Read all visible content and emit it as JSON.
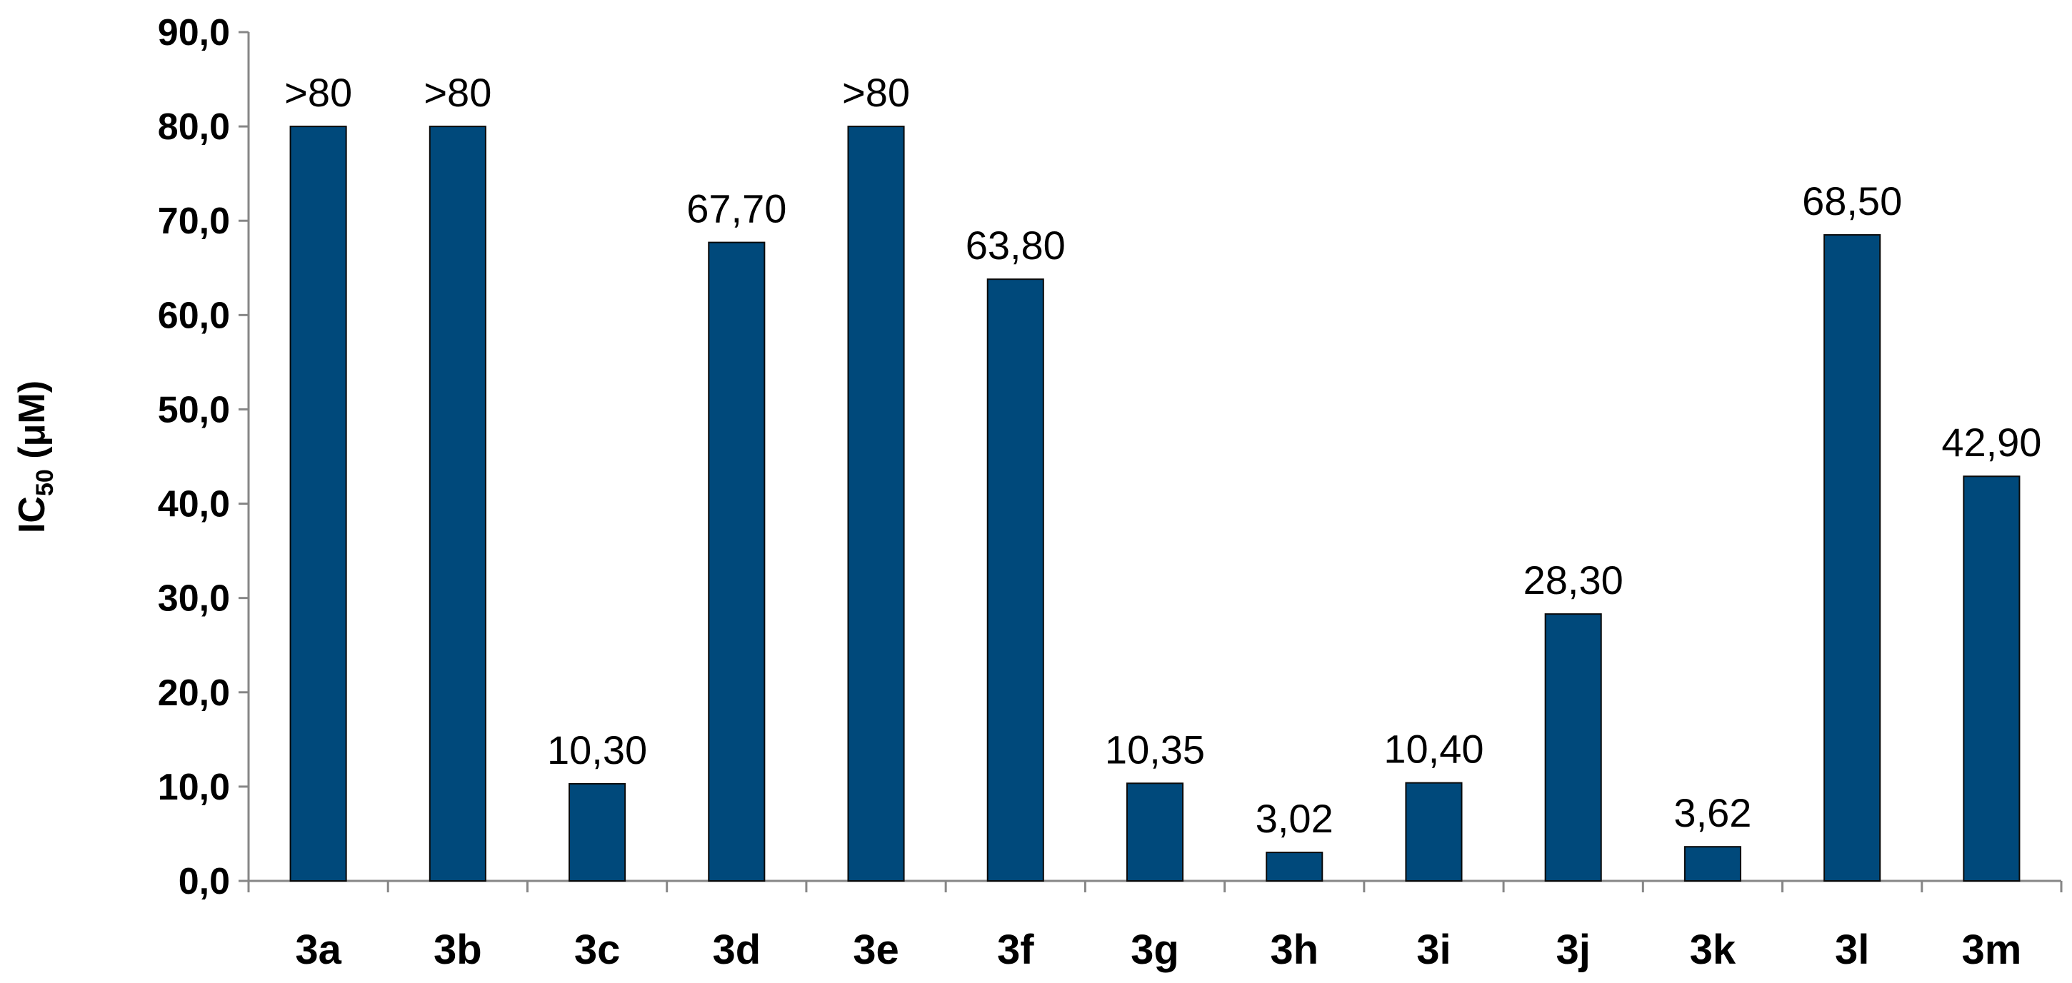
{
  "chart_data": {
    "type": "bar",
    "y_label": [
      "IC",
      "50",
      " (μM)"
    ],
    "categories": [
      "3a",
      "3b",
      "3c",
      "3d",
      "3e",
      "3f",
      "3g",
      "3h",
      "3i",
      "3j",
      "3k",
      "3l",
      "3m"
    ],
    "values": [
      80,
      80,
      10.3,
      67.7,
      80,
      63.8,
      10.35,
      3.02,
      10.4,
      28.3,
      3.62,
      68.5,
      42.9
    ],
    "value_labels": [
      ">80",
      ">80",
      "10,30",
      "67,70",
      ">80",
      "63,80",
      "10,35",
      "3,02",
      "10,40",
      "28,30",
      "3,62",
      "68,50",
      "42,90"
    ],
    "color": "#00497b",
    "ylim": [
      0,
      90
    ],
    "yticks": [
      {
        "value": 0,
        "label": "0,0"
      },
      {
        "value": 10,
        "label": "10,0"
      },
      {
        "value": 20,
        "label": "20,0"
      },
      {
        "value": 30,
        "label": "30,0"
      },
      {
        "value": 40,
        "label": "40,0"
      },
      {
        "value": 50,
        "label": "50,0"
      },
      {
        "value": 60,
        "label": "60,0"
      },
      {
        "value": 70,
        "label": "70,0"
      },
      {
        "value": 80,
        "label": "80,0"
      },
      {
        "value": 90,
        "label": "90,0"
      }
    ]
  }
}
